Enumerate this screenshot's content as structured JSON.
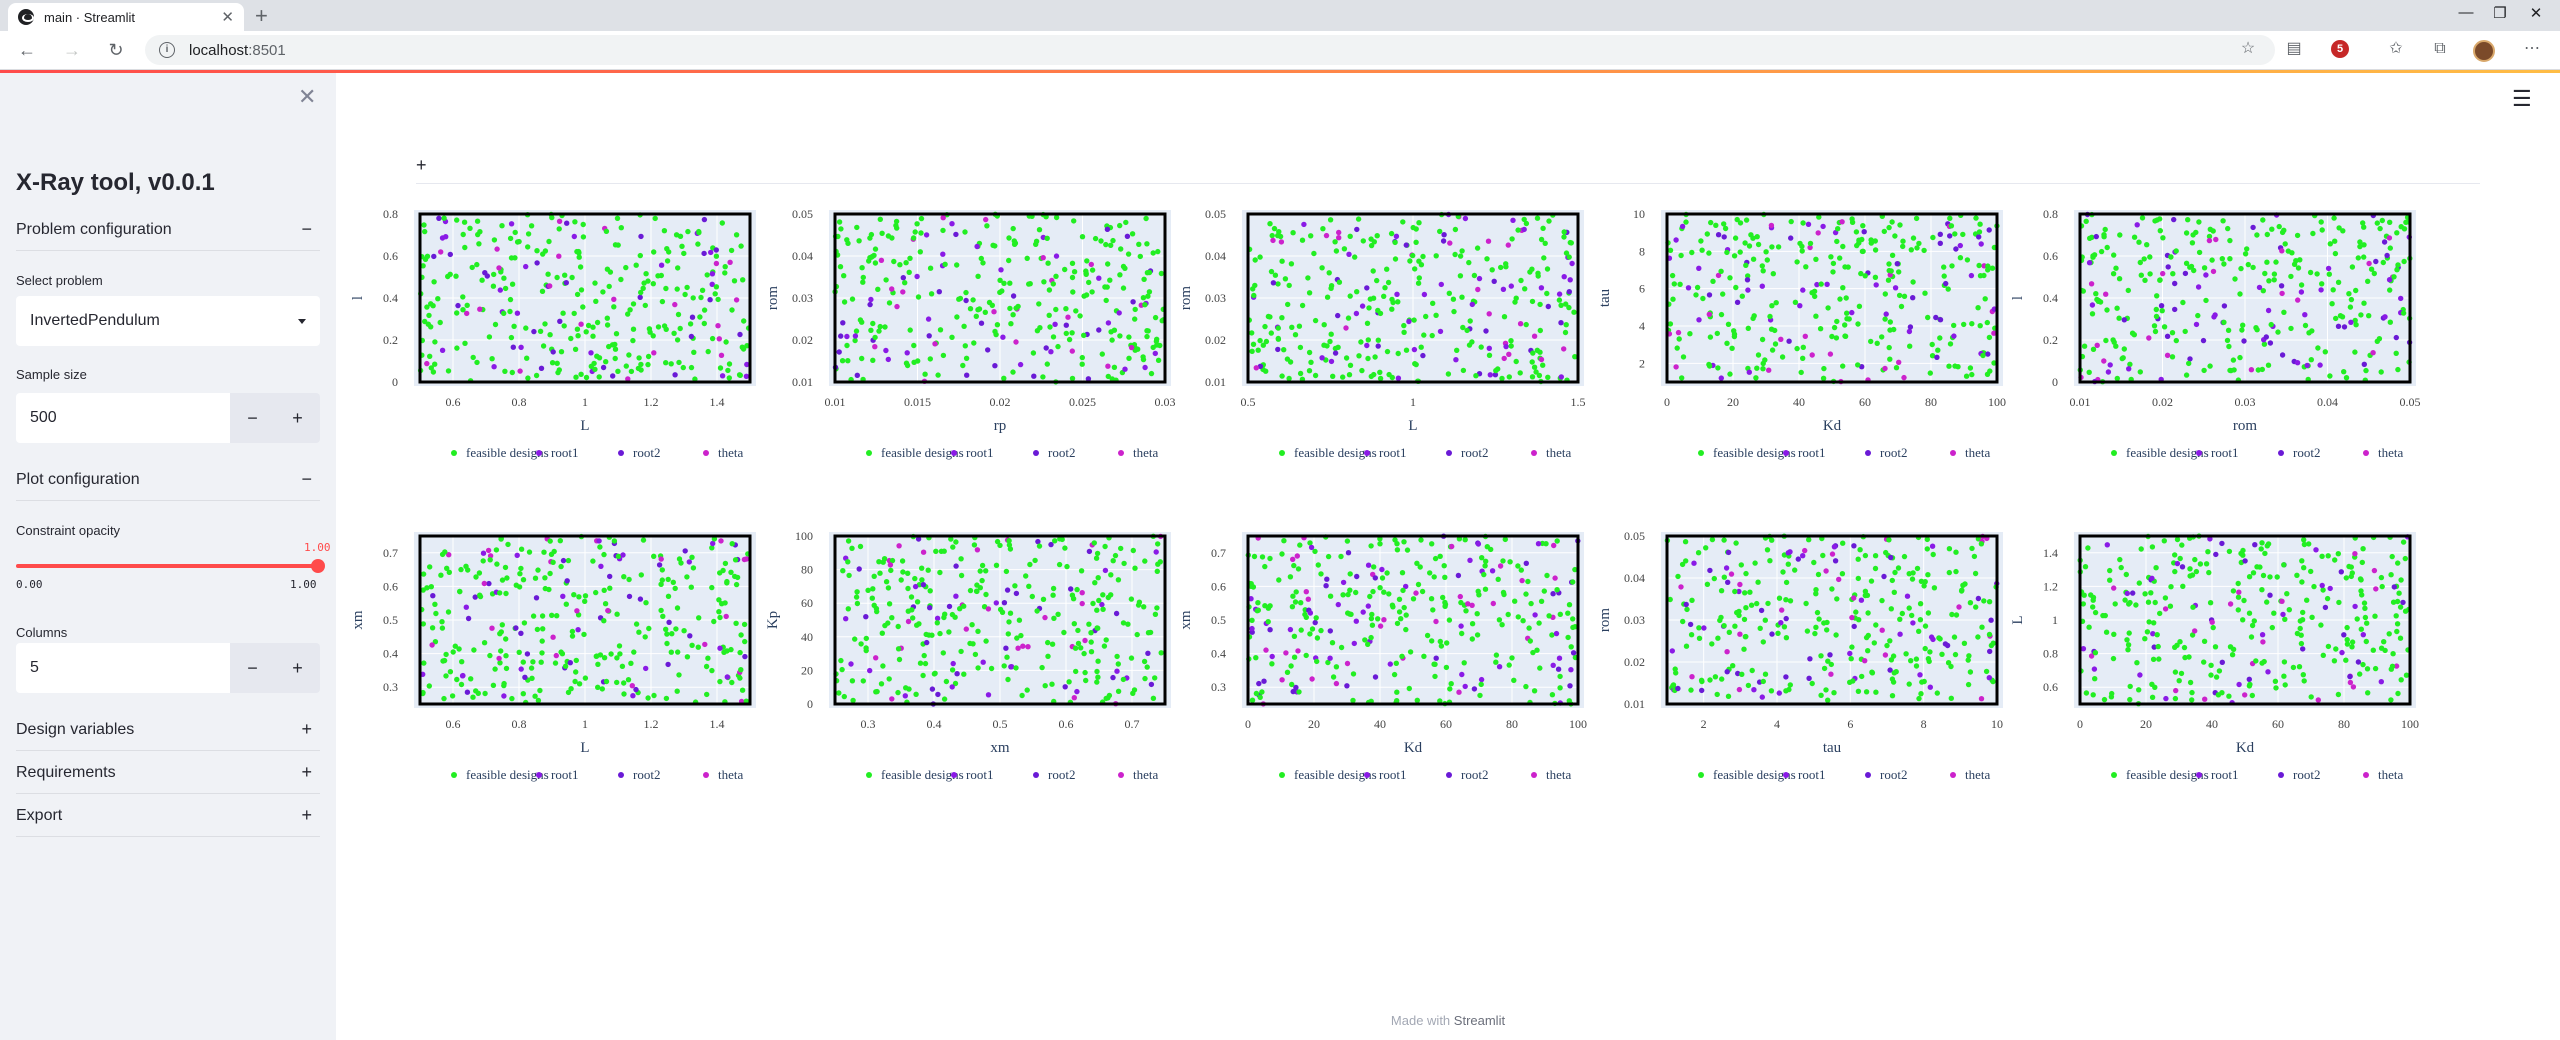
{
  "browser": {
    "tab_title": "main · Streamlit",
    "url_host": "localhost",
    "url_port": ":8501",
    "extension_badge": "5"
  },
  "sidebar": {
    "title": "X-Ray tool, v0.0.1",
    "problem_config": {
      "label": "Problem configuration",
      "sign": "−"
    },
    "select_problem": {
      "label": "Select problem",
      "value": "InvertedPendulum"
    },
    "sample_size": {
      "label": "Sample size",
      "value": "500",
      "minus": "−",
      "plus": "+"
    },
    "plot_config": {
      "label": "Plot configuration",
      "sign": "−"
    },
    "constraint_opacity": {
      "label": "Constraint opacity",
      "value": "1.00",
      "min": "0.00",
      "max": "1.00",
      "level": 1.0
    },
    "columns": {
      "label": "Columns",
      "value": "5",
      "minus": "−",
      "plus": "+"
    },
    "design_variables": {
      "label": "Design variables",
      "sign": "+"
    },
    "requirements": {
      "label": "Requirements",
      "sign": "+"
    },
    "export": {
      "label": "Export",
      "sign": "+"
    }
  },
  "main": {
    "add_sign": "+",
    "footer_prefix": "Made with",
    "footer_brand": "Streamlit"
  },
  "colors": {
    "feasible": "#22ee22",
    "root1": "#8a1ae6",
    "root2": "#6a1ad6",
    "theta": "#cc22cc",
    "accent": "#ff4b4b"
  },
  "chart_data": [
    {
      "type": "scatter",
      "xlabel": "L",
      "ylabel": "l",
      "xlim": [
        0.5,
        1.5
      ],
      "ylim": [
        0,
        0.8
      ],
      "xticks": [
        "0.6",
        "0.8",
        "1",
        "1.2",
        "1.4"
      ],
      "yticks": [
        "0",
        "0.2",
        "0.4",
        "0.6",
        "0.8"
      ],
      "legend": [
        "feasible designs",
        "root1",
        "root2",
        "theta"
      ]
    },
    {
      "type": "scatter",
      "xlabel": "rp",
      "ylabel": "rom",
      "xlim": [
        0.01,
        0.03
      ],
      "ylim": [
        0.01,
        0.05
      ],
      "xticks": [
        "0.01",
        "0.015",
        "0.02",
        "0.025",
        "0.03"
      ],
      "yticks": [
        "0.01",
        "0.02",
        "0.03",
        "0.04",
        "0.05"
      ],
      "legend": [
        "feasible designs",
        "root1",
        "root2",
        "theta"
      ]
    },
    {
      "type": "scatter",
      "xlabel": "L",
      "ylabel": "rom",
      "xlim": [
        0.5,
        1.5
      ],
      "ylim": [
        0.01,
        0.05
      ],
      "xticks": [
        "0.5",
        "1",
        "1.5"
      ],
      "yticks": [
        "0.01",
        "0.02",
        "0.03",
        "0.04",
        "0.05"
      ],
      "legend": [
        "feasible designs",
        "root1",
        "root2",
        "theta"
      ]
    },
    {
      "type": "scatter",
      "xlabel": "Kd",
      "ylabel": "tau",
      "xlim": [
        0,
        100
      ],
      "ylim": [
        1,
        10
      ],
      "xticks": [
        "0",
        "20",
        "40",
        "60",
        "80",
        "100"
      ],
      "yticks": [
        "2",
        "4",
        "6",
        "8",
        "10"
      ],
      "legend": [
        "feasible designs",
        "root1",
        "root2",
        "theta"
      ]
    },
    {
      "type": "scatter",
      "xlabel": "rom",
      "ylabel": "l",
      "xlim": [
        0.01,
        0.05
      ],
      "ylim": [
        0,
        0.8
      ],
      "xticks": [
        "0.01",
        "0.02",
        "0.03",
        "0.04",
        "0.05"
      ],
      "yticks": [
        "0",
        "0.2",
        "0.4",
        "0.6",
        "0.8"
      ],
      "legend": [
        "feasible designs",
        "root1",
        "root2",
        "theta"
      ]
    },
    {
      "type": "scatter",
      "xlabel": "L",
      "ylabel": "xm",
      "xlim": [
        0.5,
        1.5
      ],
      "ylim": [
        0.25,
        0.75
      ],
      "xticks": [
        "0.6",
        "0.8",
        "1",
        "1.2",
        "1.4"
      ],
      "yticks": [
        "0.3",
        "0.4",
        "0.5",
        "0.6",
        "0.7"
      ],
      "legend": [
        "feasible designs",
        "root1",
        "root2",
        "theta"
      ]
    },
    {
      "type": "scatter",
      "xlabel": "xm",
      "ylabel": "Kp",
      "xlim": [
        0.25,
        0.75
      ],
      "ylim": [
        0,
        100
      ],
      "xticks": [
        "0.3",
        "0.4",
        "0.5",
        "0.6",
        "0.7"
      ],
      "yticks": [
        "0",
        "20",
        "40",
        "60",
        "80",
        "100"
      ],
      "legend": [
        "feasible designs",
        "root1",
        "root2",
        "theta"
      ]
    },
    {
      "type": "scatter",
      "xlabel": "Kd",
      "ylabel": "xm",
      "xlim": [
        0,
        100
      ],
      "ylim": [
        0.25,
        0.75
      ],
      "xticks": [
        "0",
        "20",
        "40",
        "60",
        "80",
        "100"
      ],
      "yticks": [
        "0.3",
        "0.4",
        "0.5",
        "0.6",
        "0.7"
      ],
      "legend": [
        "feasible designs",
        "root1",
        "root2",
        "theta"
      ]
    },
    {
      "type": "scatter",
      "xlabel": "tau",
      "ylabel": "rom",
      "xlim": [
        1,
        10
      ],
      "ylim": [
        0.01,
        0.05
      ],
      "xticks": [
        "2",
        "4",
        "6",
        "8",
        "10"
      ],
      "yticks": [
        "0.01",
        "0.02",
        "0.03",
        "0.04",
        "0.05"
      ],
      "legend": [
        "feasible designs",
        "root1",
        "root2",
        "theta"
      ]
    },
    {
      "type": "scatter",
      "xlabel": "Kd",
      "ylabel": "L",
      "xlim": [
        0,
        100
      ],
      "ylim": [
        0.5,
        1.5
      ],
      "xticks": [
        "0",
        "20",
        "40",
        "60",
        "80",
        "100"
      ],
      "yticks": [
        "0.6",
        "0.8",
        "1",
        "1.2",
        "1.4"
      ],
      "legend": [
        "feasible designs",
        "root1",
        "root2",
        "theta"
      ]
    }
  ]
}
